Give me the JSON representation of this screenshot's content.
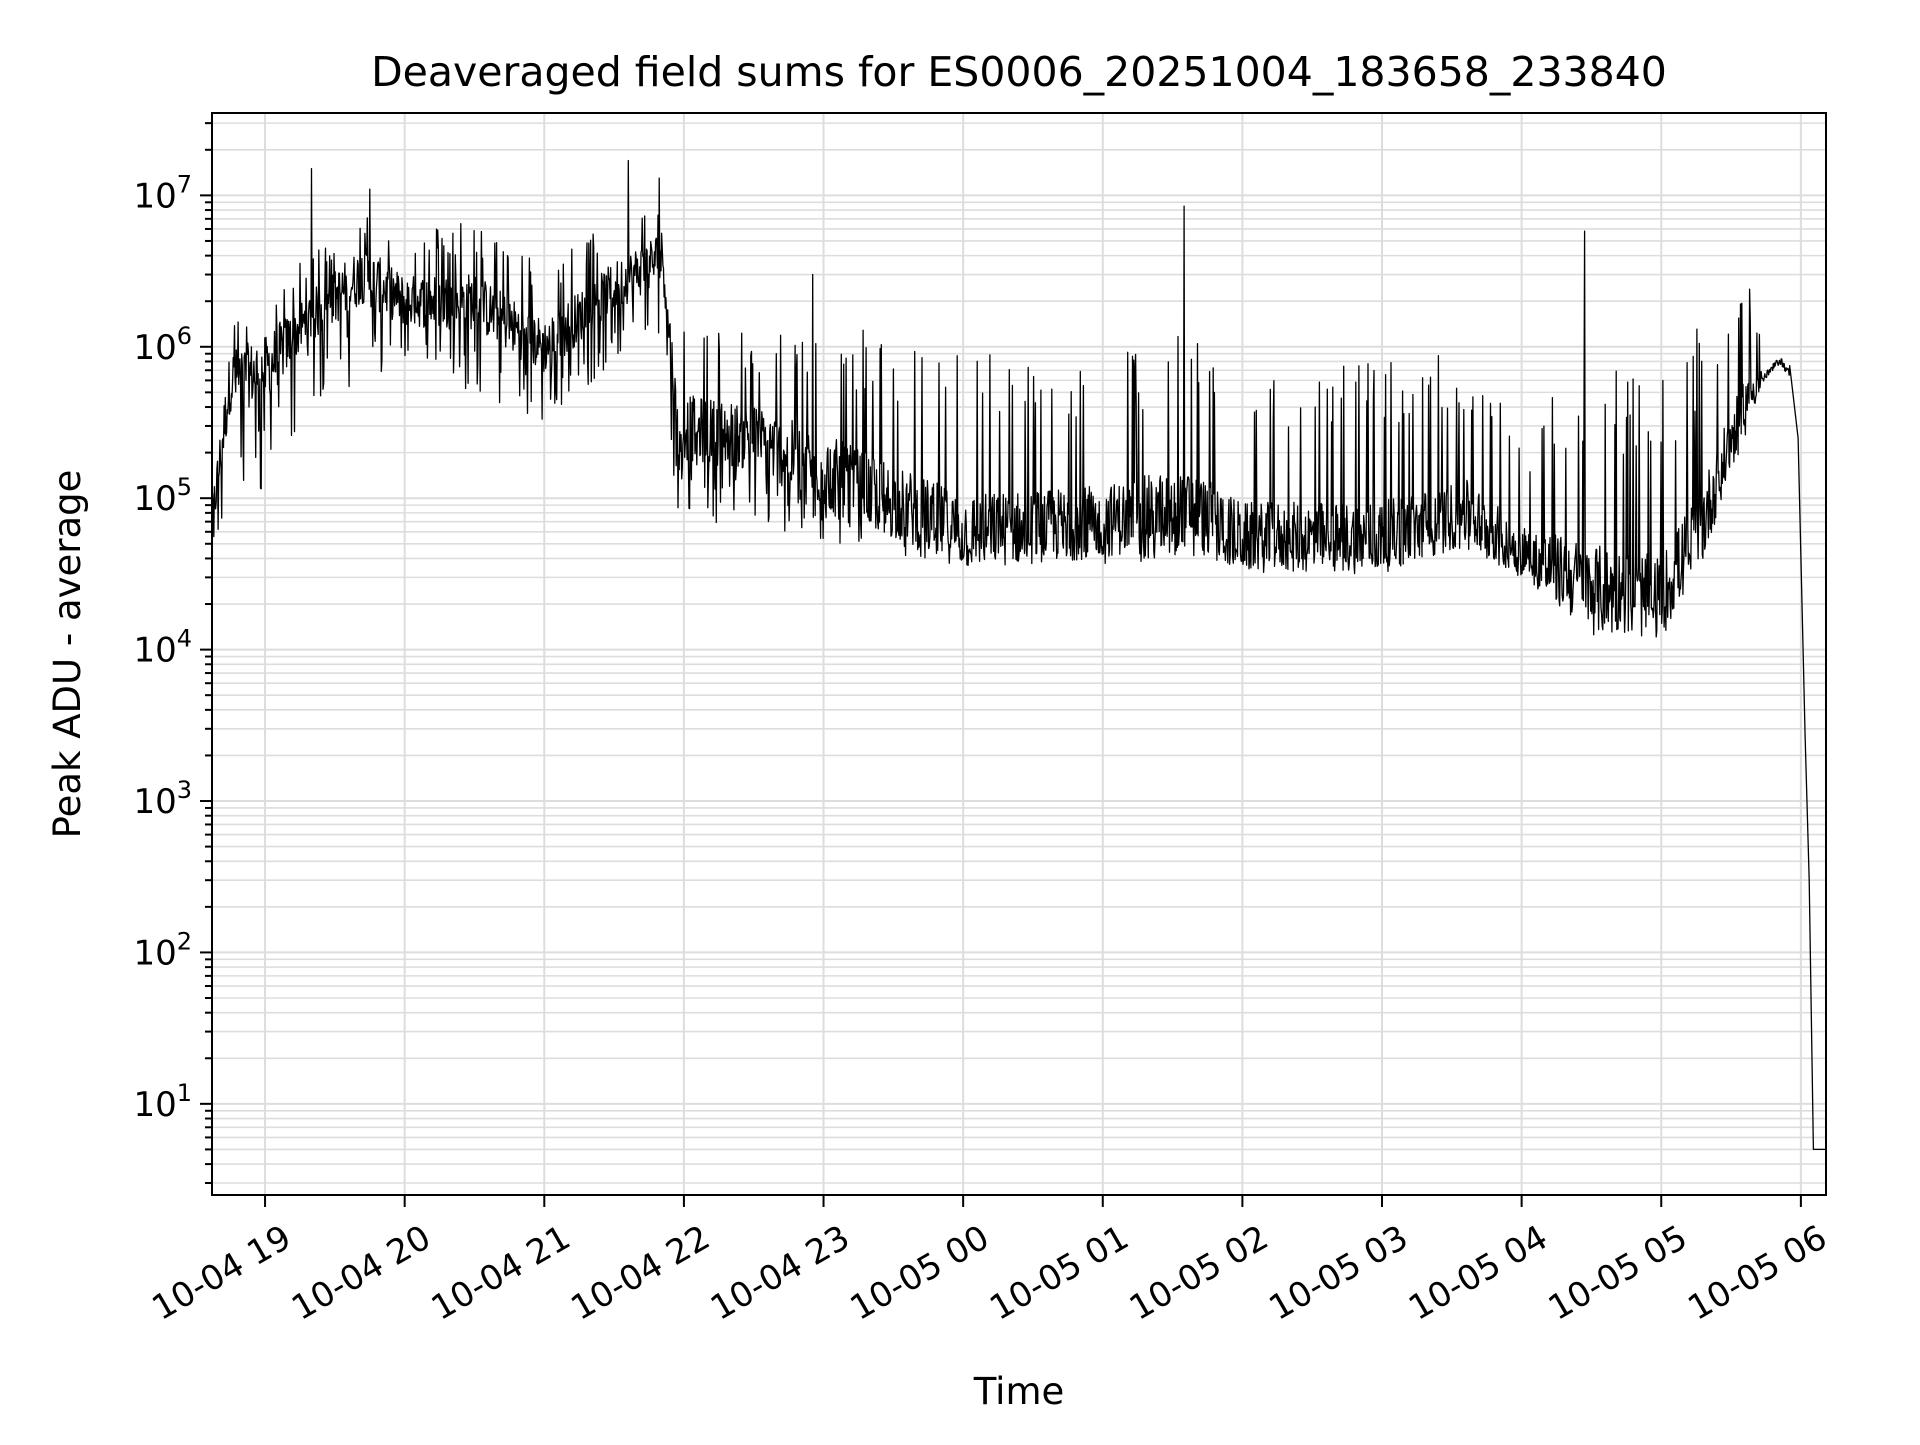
{
  "chart_data": {
    "type": "line",
    "title": "Deaveraged field sums for ES0006_20251004_183658_233840",
    "xlabel": "Time",
    "ylabel": "Peak ADU - average",
    "yscale": "log",
    "ylim": [
      2.5,
      35000000
    ],
    "xlim": [
      "10-04 18:37",
      "10-05 06:11"
    ],
    "x_unit": "hours since 10-04 18:00",
    "xlim_hours": [
      18.62,
      30.18
    ],
    "grid": "major and minor",
    "legend": "none",
    "xticks": [
      {
        "hours": 19,
        "label": "10-04 19"
      },
      {
        "hours": 20,
        "label": "10-04 20"
      },
      {
        "hours": 21,
        "label": "10-04 21"
      },
      {
        "hours": 22,
        "label": "10-04 22"
      },
      {
        "hours": 23,
        "label": "10-04 23"
      },
      {
        "hours": 24,
        "label": "10-05 00"
      },
      {
        "hours": 25,
        "label": "10-05 01"
      },
      {
        "hours": 26,
        "label": "10-05 02"
      },
      {
        "hours": 27,
        "label": "10-05 03"
      },
      {
        "hours": 28,
        "label": "10-05 04"
      },
      {
        "hours": 29,
        "label": "10-05 05"
      },
      {
        "hours": 30,
        "label": "10-05 06"
      }
    ],
    "yticks": [
      {
        "value": 10,
        "base": "10",
        "exp": "1"
      },
      {
        "value": 100,
        "base": "10",
        "exp": "2"
      },
      {
        "value": 1000,
        "base": "10",
        "exp": "3"
      },
      {
        "value": 10000,
        "base": "10",
        "exp": "4"
      },
      {
        "value": 100000,
        "base": "10",
        "exp": "5"
      },
      {
        "value": 1000000,
        "base": "10",
        "exp": "6"
      },
      {
        "value": 10000000,
        "base": "10",
        "exp": "7"
      }
    ],
    "series": [
      {
        "name": "peak ADU - average",
        "color": "#000000",
        "envelope": [
          {
            "t": 18.62,
            "base": 70000,
            "high": 250000,
            "low": 30000
          },
          {
            "t": 18.75,
            "base": 600000,
            "high": 1600000,
            "low": 100000
          },
          {
            "t": 19.0,
            "base": 700000,
            "high": 2000000,
            "low": 100000
          },
          {
            "t": 19.3,
            "base": 1500000,
            "high": 4000000,
            "low": 400000
          },
          {
            "t": 19.7,
            "base": 3000000,
            "high": 8000000,
            "low": 600000
          },
          {
            "t": 20.0,
            "base": 2000000,
            "high": 6000000,
            "low": 600000
          },
          {
            "t": 20.5,
            "base": 2000000,
            "high": 6500000,
            "low": 500000
          },
          {
            "t": 21.0,
            "base": 1000000,
            "high": 3500000,
            "low": 300000
          },
          {
            "t": 21.5,
            "base": 2500000,
            "high": 7000000,
            "low": 800000
          },
          {
            "t": 21.85,
            "base": 4000000,
            "high": 12000000,
            "low": 1000000
          },
          {
            "t": 21.95,
            "base": 300000,
            "high": 1500000,
            "low": 80000
          },
          {
            "t": 22.5,
            "base": 250000,
            "high": 1200000,
            "low": 60000
          },
          {
            "t": 23.0,
            "base": 150000,
            "high": 1500000,
            "low": 50000
          },
          {
            "t": 24.0,
            "base": 60000,
            "high": 1000000,
            "low": 35000
          },
          {
            "t": 25.0,
            "base": 70000,
            "high": 900000,
            "low": 35000
          },
          {
            "t": 25.6,
            "base": 90000,
            "high": 1300000,
            "low": 40000
          },
          {
            "t": 26.0,
            "base": 55000,
            "high": 800000,
            "low": 35000
          },
          {
            "t": 27.0,
            "base": 55000,
            "high": 900000,
            "low": 35000
          },
          {
            "t": 27.6,
            "base": 80000,
            "high": 900000,
            "low": 45000
          },
          {
            "t": 28.0,
            "base": 45000,
            "high": 300000,
            "low": 30000
          },
          {
            "t": 28.5,
            "base": 25000,
            "high": 1000000,
            "low": 17000
          },
          {
            "t": 29.0,
            "base": 22000,
            "high": 600000,
            "low": 15000
          },
          {
            "t": 29.3,
            "base": 70000,
            "high": 1500000,
            "low": 40000
          },
          {
            "t": 29.6,
            "base": 450000,
            "high": 2000000,
            "low": 250000
          },
          {
            "t": 29.85,
            "base": 820000,
            "high": 900000,
            "low": 700000
          },
          {
            "t": 29.95,
            "base": 600000,
            "high": 700000,
            "low": 500000
          },
          {
            "t": 30.1,
            "base": 5,
            "high": 6,
            "low": 5
          },
          {
            "t": 30.18,
            "base": 5,
            "high": 6,
            "low": 5
          }
        ],
        "spikes": [
          {
            "t": 19.33,
            "value": 15000000
          },
          {
            "t": 19.75,
            "value": 11000000
          },
          {
            "t": 20.4,
            "value": 6500000
          },
          {
            "t": 21.6,
            "value": 17000000
          },
          {
            "t": 21.82,
            "value": 13000000
          },
          {
            "t": 22.92,
            "value": 3000000
          },
          {
            "t": 25.58,
            "value": 8500000
          },
          {
            "t": 28.45,
            "value": 5800000
          },
          {
            "t": 29.63,
            "value": 2400000
          }
        ],
        "drop": [
          {
            "t": 29.92,
            "value": 750000
          },
          {
            "t": 29.98,
            "value": 250000
          },
          {
            "t": 30.03,
            "value": 2700
          },
          {
            "t": 30.06,
            "value": 300
          },
          {
            "t": 30.09,
            "value": 5
          }
        ]
      }
    ]
  }
}
